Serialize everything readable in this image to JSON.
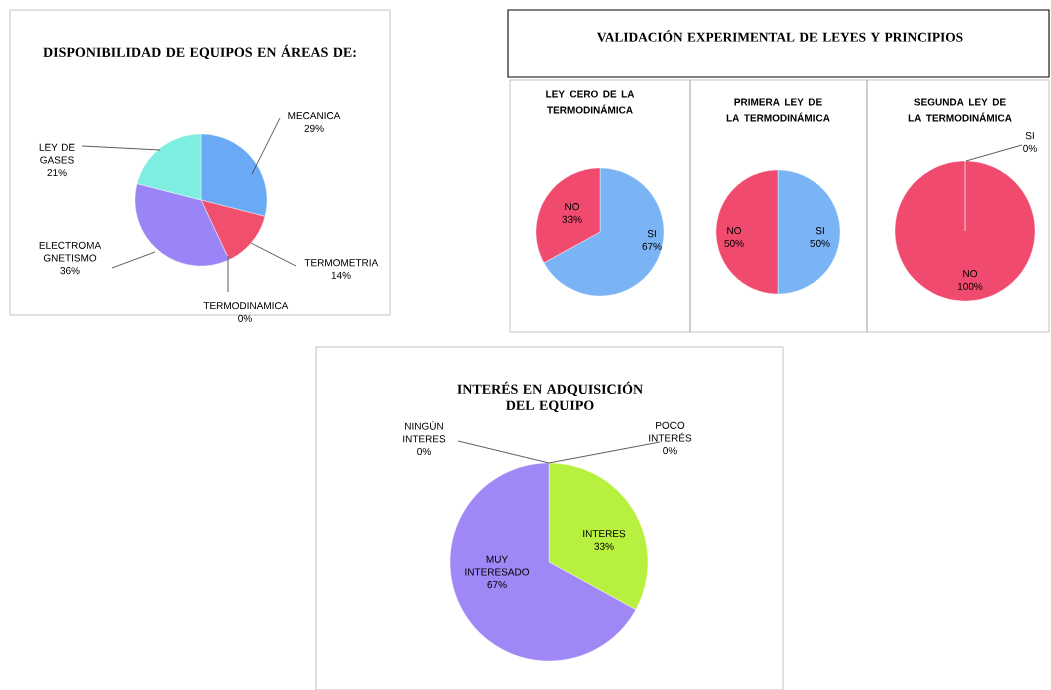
{
  "chart_data": [
    {
      "type": "pie",
      "title": "DISPONIBILIDAD DE EQUIPOS EN ÁREAS DE:",
      "categories": [
        "MECANICA",
        "TERMOMETRIA",
        "TERMODINAMICA",
        "ELECTROMA GNETISMO",
        "LEY DE GASES"
      ],
      "values": [
        29,
        14,
        0,
        36,
        21
      ],
      "value_labels": [
        "29%",
        "14%",
        "0%",
        "36%",
        "21%"
      ],
      "colors": [
        "#6aaaf5",
        "#f0506e",
        "#a0d848",
        "#9b84f5",
        "#7eeee0"
      ]
    },
    {
      "type": "other",
      "title": "VALIDACIÓN EXPERIMENTAL DE LEYES Y PRINCIPIOS"
    },
    {
      "type": "pie",
      "title": "LEY CERO DE LA TERMODINÁMICA",
      "categories": [
        "SI",
        "NO"
      ],
      "values": [
        67,
        33
      ],
      "value_labels": [
        "67%",
        "33%"
      ],
      "colors": [
        "#7ab4f5",
        "#f04a6e"
      ]
    },
    {
      "type": "pie",
      "title": "PRIMERA LEY DE LA TERMODINÁMICA",
      "categories": [
        "SI",
        "NO"
      ],
      "values": [
        50,
        50
      ],
      "value_labels": [
        "50%",
        "50%"
      ],
      "colors": [
        "#7ab4f5",
        "#f04a6e"
      ]
    },
    {
      "type": "pie",
      "title": "SEGUNDA LEY DE LA TERMODINÁMICA",
      "categories": [
        "SI",
        "NO"
      ],
      "values": [
        0,
        100
      ],
      "value_labels": [
        "0%",
        "100%"
      ],
      "colors": [
        "#7ab4f5",
        "#f04a6e"
      ]
    },
    {
      "type": "pie",
      "title": "INTERÉS EN ADQUISICIÓN DEL EQUIPO",
      "categories": [
        "INTERES",
        "MUY INTERESADO",
        "NINGÚN INTERES",
        "POCO INTERÉS"
      ],
      "values": [
        33,
        67,
        0,
        0
      ],
      "value_labels": [
        "33%",
        "67%",
        "0%",
        "0%"
      ],
      "colors": [
        "#b8f040",
        "#9f88f5",
        "#c8c8c8",
        "#f0b040"
      ]
    }
  ]
}
